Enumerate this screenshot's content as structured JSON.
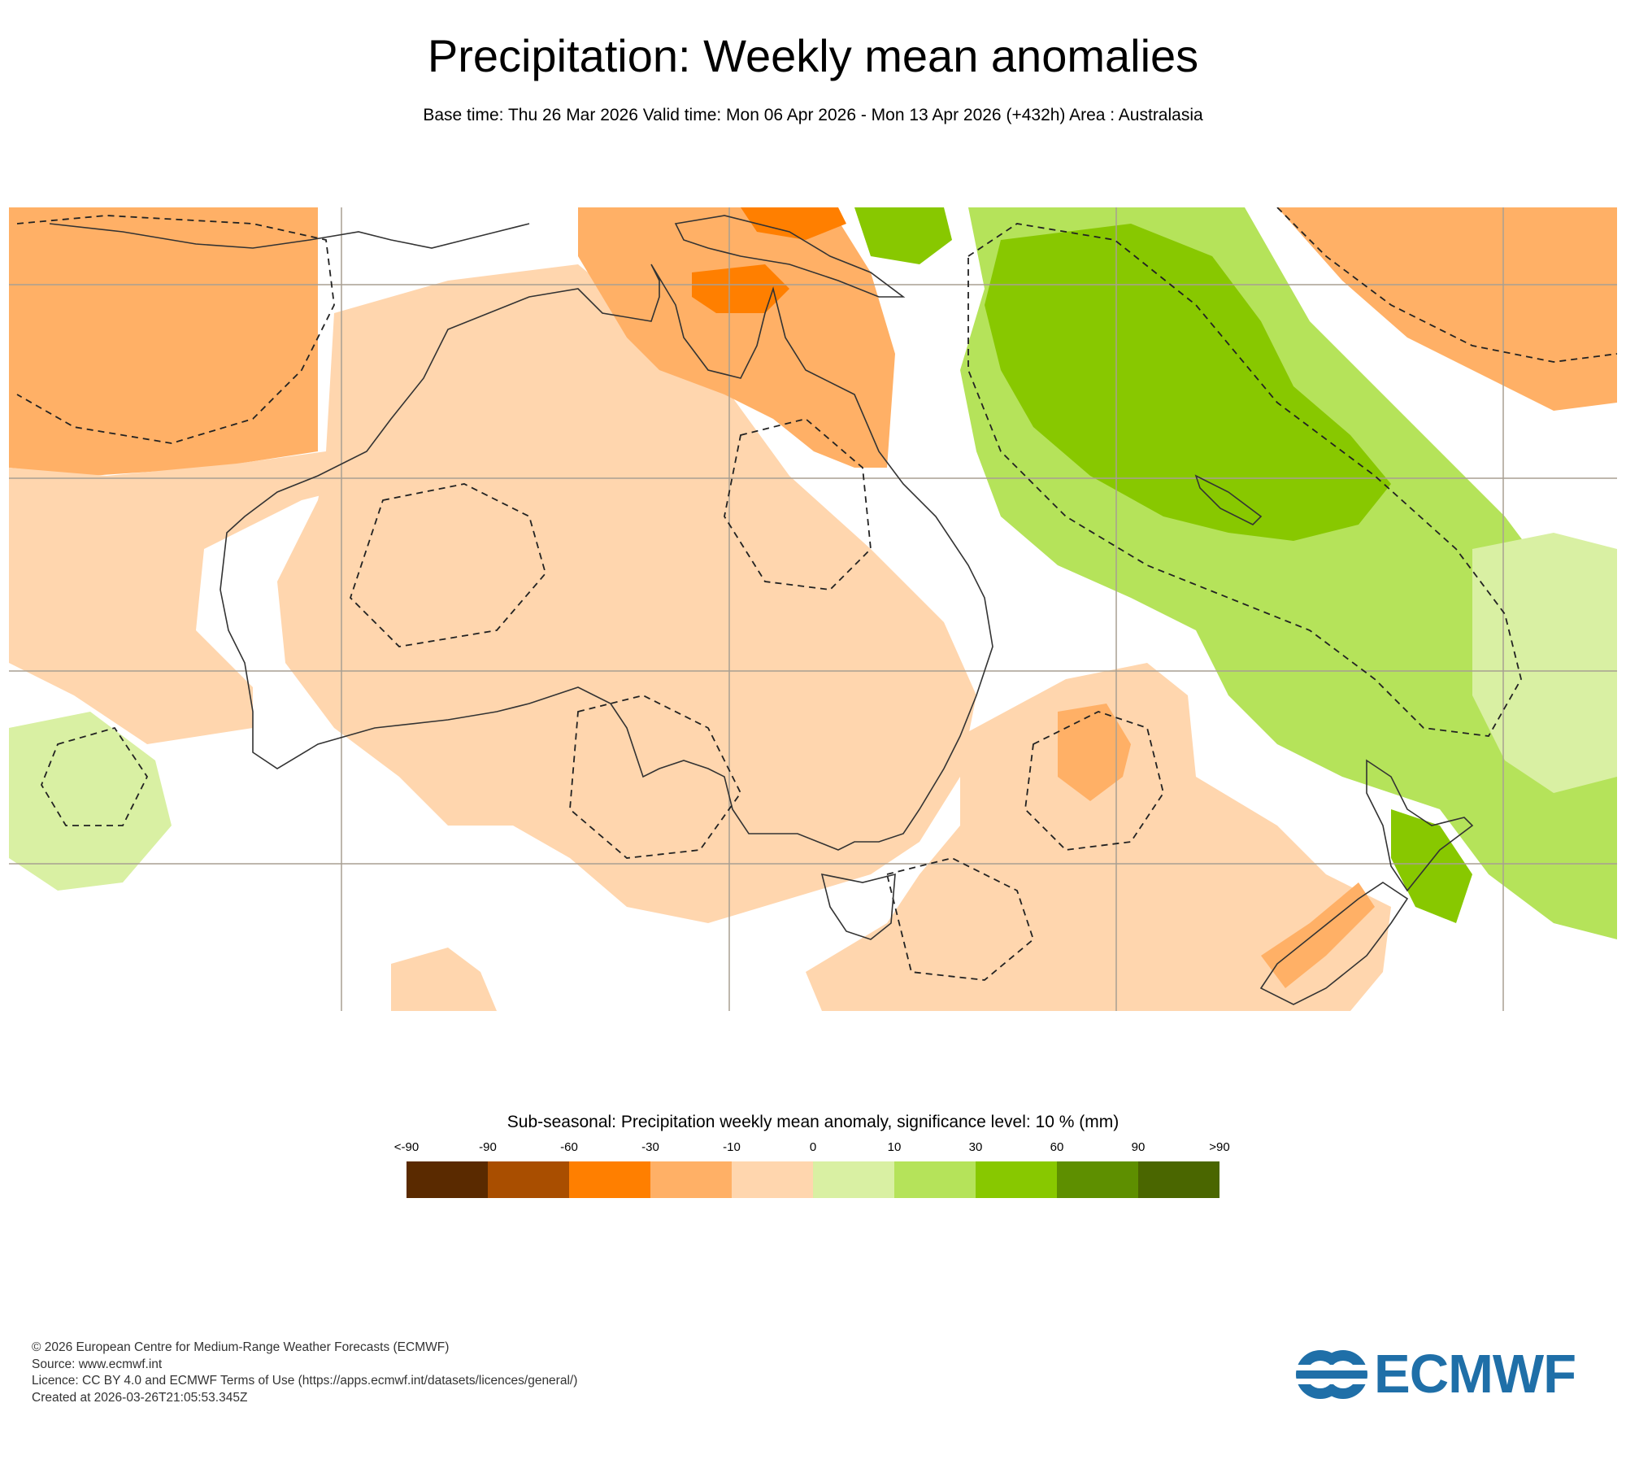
{
  "header": {
    "title": "Precipitation: Weekly mean anomalies",
    "subtitle": "Base time: Thu 26 Mar 2026 Valid time: Mon 06 Apr 2026 - Mon 13 Apr 2026 (+432h) Area : Australasia"
  },
  "legend": {
    "title": "Sub-seasonal: Precipitation weekly mean anomaly, significance level: 10 % (mm)",
    "ticks": [
      "<-90",
      "-90",
      "-60",
      "-30",
      "-10",
      "0",
      "10",
      "30",
      "60",
      "90",
      ">90"
    ],
    "colors": [
      "#5a2a00",
      "#a94e00",
      "#ff7f00",
      "#ffb066",
      "#ffd6ae",
      "#d9f0a3",
      "#b5e35a",
      "#88c800",
      "#5e8f00",
      "#4a6600"
    ]
  },
  "map": {
    "palette": {
      "ocean": "#ffffff",
      "coast": "#333333",
      "grid": "#a89f92",
      "contour": "#222222"
    }
  },
  "footer": {
    "line1": "© 2026 European Centre for Medium-Range Weather Forecasts (ECMWF)",
    "line2": "Source: www.ecmwf.int",
    "line3": "Licence: CC BY 4.0 and ECMWF Terms of Use (https://apps.ecmwf.int/datasets/licences/general/)",
    "line4": "Created at 2026-03-26T21:05:53.345Z"
  },
  "logo": {
    "text": "ECMWF",
    "color": "#1f6fa8"
  }
}
